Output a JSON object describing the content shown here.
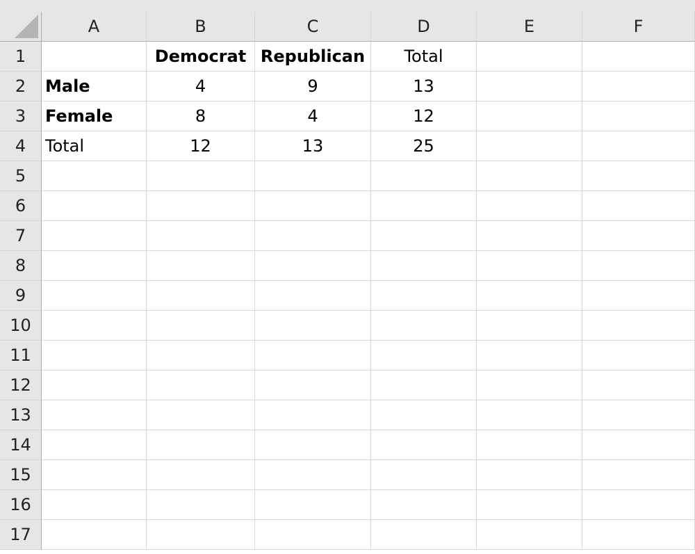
{
  "columns": [
    "A",
    "B",
    "C",
    "D",
    "E",
    "F"
  ],
  "rows": [
    "1",
    "2",
    "3",
    "4",
    "5",
    "6",
    "7",
    "8",
    "9",
    "10",
    "11",
    "12",
    "13",
    "14",
    "15",
    "16",
    "17"
  ],
  "cells": [
    [
      {
        "v": ""
      },
      {
        "v": "Democrat",
        "bold": true
      },
      {
        "v": "Republican",
        "bold": true
      },
      {
        "v": "Total"
      },
      {
        "v": ""
      },
      {
        "v": ""
      }
    ],
    [
      {
        "v": "Male",
        "bold": true,
        "left": true
      },
      {
        "v": "4"
      },
      {
        "v": "9"
      },
      {
        "v": "13"
      },
      {
        "v": ""
      },
      {
        "v": ""
      }
    ],
    [
      {
        "v": "Female",
        "bold": true,
        "left": true
      },
      {
        "v": "8"
      },
      {
        "v": "4"
      },
      {
        "v": "12"
      },
      {
        "v": ""
      },
      {
        "v": ""
      }
    ],
    [
      {
        "v": "Total",
        "left": true
      },
      {
        "v": "12"
      },
      {
        "v": "13"
      },
      {
        "v": "25"
      },
      {
        "v": ""
      },
      {
        "v": ""
      }
    ]
  ]
}
